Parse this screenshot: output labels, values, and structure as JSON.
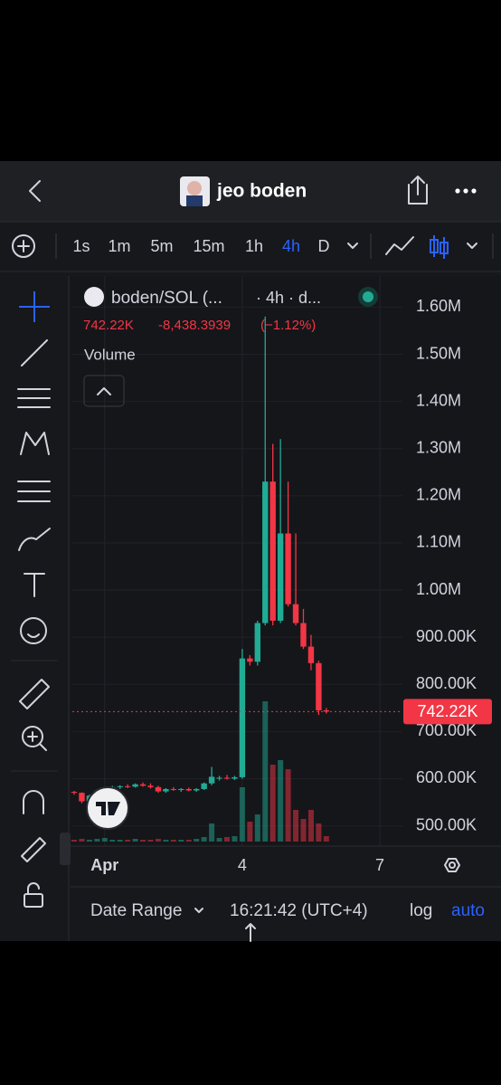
{
  "header": {
    "title": "jeo boden"
  },
  "toolbar": {
    "intervals": [
      "1s",
      "1m",
      "5m",
      "15m",
      "1h",
      "4h",
      "D"
    ],
    "active_interval": 5
  },
  "legend": {
    "symbol": "boden/SOL (...",
    "details": "· 4h · d...",
    "change": "-8,438.3939",
    "change_percent": "(−1.12%)",
    "study": "Volume"
  },
  "footer": {
    "date_range": "Date Range",
    "time": "16:21:42 (UTC+4)",
    "log": "log",
    "auto": "auto"
  },
  "chart_data": {
    "type": "candlestick",
    "categories": [
      null,
      null,
      null,
      null,
      "Apr",
      null,
      null,
      null,
      null,
      null,
      null,
      null,
      null,
      null,
      null,
      null,
      null,
      null,
      null,
      null,
      null,
      null,
      "4",
      null,
      null,
      null,
      null,
      null,
      null,
      null,
      null,
      null,
      null,
      null,
      null,
      null,
      null,
      null,
      null,
      null,
      "7",
      null
    ],
    "open": [
      572000,
      570000,
      552000,
      564000,
      575000,
      580000,
      582000,
      584000,
      583000,
      588000,
      585000,
      582000,
      573000,
      578000,
      576000,
      578000,
      575000,
      578000,
      590000,
      600000,
      602000,
      600000,
      603000,
      855000,
      848000,
      930000,
      1230000,
      935000,
      1120000,
      970000,
      930000,
      880000,
      845000,
      745000,
      null,
      null,
      null,
      null,
      null,
      null,
      null,
      null
    ],
    "high": [
      574000,
      571000,
      566000,
      578000,
      582000,
      585000,
      586000,
      588000,
      590000,
      592000,
      590000,
      585000,
      580000,
      582000,
      580000,
      581000,
      580000,
      592000,
      625000,
      606000,
      608000,
      606000,
      875000,
      862000,
      935000,
      1580000,
      1310000,
      1320000,
      1230000,
      1120000,
      960000,
      905000,
      850000,
      750000,
      null,
      null,
      null,
      null,
      null,
      null,
      null,
      null
    ],
    "low": [
      566000,
      548000,
      550000,
      562000,
      572000,
      576000,
      578000,
      580000,
      581000,
      583000,
      579000,
      570000,
      570000,
      574000,
      572000,
      573000,
      572000,
      576000,
      586000,
      596000,
      598000,
      597000,
      600000,
      840000,
      840000,
      925000,
      925000,
      930000,
      965000,
      925000,
      875000,
      830000,
      735000,
      738000,
      null,
      null,
      null,
      null,
      null,
      null,
      null,
      null
    ],
    "close": [
      570000,
      552000,
      564000,
      575000,
      580000,
      582000,
      584000,
      583000,
      588000,
      585000,
      582000,
      573000,
      578000,
      576000,
      578000,
      575000,
      578000,
      590000,
      604000,
      602000,
      600000,
      603000,
      855000,
      848000,
      930000,
      1230000,
      935000,
      1120000,
      970000,
      930000,
      880000,
      845000,
      745000,
      742220,
      null,
      null,
      null,
      null,
      null,
      null,
      null,
      null
    ],
    "volume": [
      2,
      3,
      2,
      3,
      4,
      2,
      2,
      2,
      3,
      2,
      2,
      3,
      2,
      2,
      2,
      2,
      3,
      5,
      20,
      4,
      5,
      6,
      60,
      22,
      30,
      155,
      85,
      90,
      80,
      35,
      25,
      35,
      20,
      6,
      null,
      null,
      null,
      null,
      null,
      null,
      null,
      null
    ],
    "volume_ylim": [
      0,
      160
    ],
    "last_price": 742220,
    "last_price_label": "742.22K",
    "up_color": "#22ab94",
    "down_color": "#f23645",
    "ylim": [
      457000,
      1666000
    ],
    "yticks": [
      {
        "value": 1600000,
        "label": "1.60M"
      },
      {
        "value": 1500000,
        "label": "1.50M"
      },
      {
        "value": 1400000,
        "label": "1.40M"
      },
      {
        "value": 1300000,
        "label": "1.30M"
      },
      {
        "value": 1200000,
        "label": "1.20M"
      },
      {
        "value": 1100000,
        "label": "1.10M"
      },
      {
        "value": 1000000,
        "label": "1.00M"
      },
      {
        "value": 900000,
        "label": "900.00K"
      },
      {
        "value": 800000,
        "label": "800.00K"
      },
      {
        "value": 700000,
        "label": "700.00K"
      },
      {
        "value": 600000,
        "label": "600.00K"
      },
      {
        "value": 500000,
        "label": "500.00K"
      }
    ],
    "grid": true
  }
}
